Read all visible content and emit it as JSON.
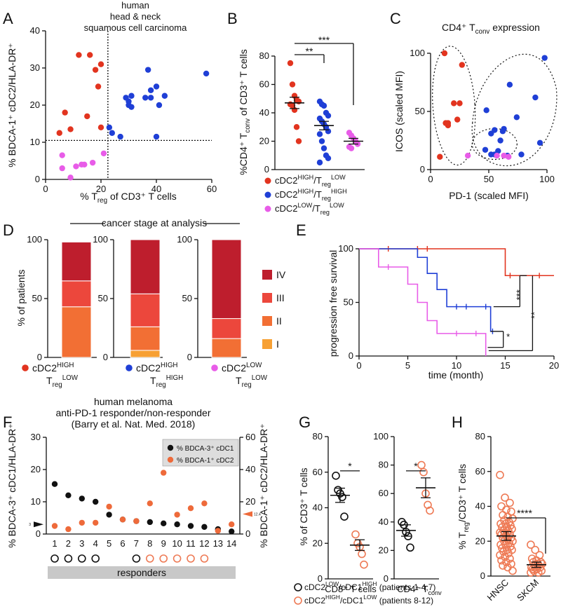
{
  "colors": {
    "red": "#e2341f",
    "blue": "#1f3fd6",
    "magenta": "#e85ce8",
    "orange": "#ee6a3a",
    "IV": "#be1e2d",
    "III": "#ec473c",
    "II": "#f26f34",
    "I": "#f7a033",
    "black": "#111111",
    "gray": "#c8c8c8",
    "circ_orange": "#ee7a55"
  },
  "panels": {
    "A": "A",
    "B": "B",
    "C": "C",
    "D": "D",
    "E": "E",
    "F": "F",
    "G": "G",
    "H": "H"
  },
  "chart_data": [
    {
      "panel": "A",
      "type": "scatter",
      "title": [
        "human",
        "head & neck",
        "squamous cell carcinoma"
      ],
      "xlabel_parts": [
        "% T",
        "reg",
        " of CD3⁺ T cells"
      ],
      "ylabel_parts": [
        "% BDCA-1⁺ cDC2/HLA-DR⁺"
      ],
      "xlim": [
        0,
        60
      ],
      "ylim": [
        0,
        40
      ],
      "xticks": [
        "0",
        "20",
        "40",
        "60"
      ],
      "yticks": [
        "0",
        "10",
        "20",
        "30",
        "40"
      ],
      "threshold_x": 22.5,
      "threshold_y": 10.5,
      "series": [
        {
          "color": "red",
          "points": [
            [
              5,
              12.5
            ],
            [
              7,
              18
            ],
            [
              9,
              13.5
            ],
            [
              12,
              33.5
            ],
            [
              15,
              17
            ],
            [
              16,
              33.5
            ],
            [
              18,
              29.5
            ],
            [
              19,
              25
            ],
            [
              20,
              31
            ],
            [
              20,
              14
            ]
          ]
        },
        {
          "color": "blue",
          "points": [
            [
              23,
              14
            ],
            [
              24,
              12.5
            ],
            [
              27,
              11.5
            ],
            [
              29,
              22
            ],
            [
              30,
              20
            ],
            [
              30,
              21
            ],
            [
              31,
              22.5
            ],
            [
              31,
              19.5
            ],
            [
              36,
              22
            ],
            [
              37,
              29.5
            ],
            [
              38,
              24
            ],
            [
              38,
              22
            ],
            [
              40,
              11.5
            ],
            [
              40,
              25
            ],
            [
              41,
              20
            ],
            [
              43,
              22.5
            ],
            [
              58,
              28.5
            ]
          ]
        },
        {
          "color": "magenta",
          "points": [
            [
              6,
              6.5
            ],
            [
              6,
              3
            ],
            [
              9,
              0.5
            ],
            [
              11,
              3.5
            ],
            [
              13,
              4
            ],
            [
              14,
              4
            ],
            [
              17,
              4.5
            ],
            [
              21,
              7
            ]
          ]
        }
      ]
    },
    {
      "panel": "B",
      "type": "scatter",
      "title": "",
      "ylabel_parts": [
        "%CD4⁺ T",
        "conv",
        " of  CD3⁺ T cells"
      ],
      "ylim": [
        0,
        80
      ],
      "yticks": [
        "0",
        "20",
        "40",
        "60",
        "80"
      ],
      "groups": [
        {
          "color": "red",
          "mean": 47,
          "sem": 4,
          "values": [
            75,
            60,
            52,
            49,
            48,
            46,
            45,
            42,
            30,
            20
          ]
        },
        {
          "color": "blue",
          "mean": 31,
          "sem": 3,
          "values": [
            48,
            46,
            45,
            40,
            38,
            36,
            34,
            32,
            30,
            27,
            25,
            20,
            15,
            10,
            8,
            5
          ]
        },
        {
          "color": "magenta",
          "mean": 20,
          "sem": 2,
          "values": [
            26,
            24,
            22,
            20,
            18,
            16,
            15
          ]
        }
      ],
      "sig": [
        "**",
        "***"
      ],
      "legend": [
        {
          "color": "red",
          "parts": [
            "cDC2",
            "HIGH",
            "/T",
            "reg",
            "LOW"
          ]
        },
        {
          "color": "blue",
          "parts": [
            "cDC2",
            "HIGH",
            "/T",
            "reg",
            "HIGH"
          ]
        },
        {
          "color": "magenta",
          "parts": [
            "cDC2",
            "LOW",
            "/T",
            "reg",
            "LOW"
          ]
        }
      ]
    },
    {
      "panel": "C",
      "type": "scatter",
      "title_parts": [
        "CD4⁺ T",
        "conv",
        " expression"
      ],
      "xlabel": "PD-1 (scaled MFI)",
      "ylabel": "ICOS (scaled MFI)",
      "xlim": [
        0,
        100
      ],
      "ylim": [
        0,
        100
      ],
      "xticks": [
        "0",
        "50",
        "100"
      ],
      "yticks": [
        "0",
        "50",
        "100"
      ],
      "series": [
        {
          "color": "red",
          "points": [
            [
              12,
              100
            ],
            [
              27,
              90
            ],
            [
              20,
              57
            ],
            [
              25,
              57
            ],
            [
              13,
              40
            ],
            [
              15,
              40
            ],
            [
              15,
              38
            ],
            [
              23,
              43
            ],
            [
              8,
              11
            ]
          ]
        },
        {
          "color": "blue",
          "points": [
            [
              98,
              96
            ],
            [
              68,
              73
            ],
            [
              90,
              62
            ],
            [
              48,
              51
            ],
            [
              74,
              45
            ],
            [
              63,
              35
            ],
            [
              52,
              31
            ],
            [
              55,
              34
            ],
            [
              58,
              16
            ],
            [
              47,
              17
            ],
            [
              52,
              13
            ],
            [
              55,
              13
            ],
            [
              78,
              13
            ],
            [
              66,
              12
            ],
            [
              94,
              23
            ],
            [
              62,
              33
            ],
            [
              60,
              25
            ]
          ]
        },
        {
          "color": "magenta",
          "points": [
            [
              32,
              12
            ],
            [
              57,
              12
            ],
            [
              63,
              12
            ],
            [
              67,
              11
            ]
          ]
        }
      ]
    },
    {
      "panel": "D",
      "type": "bar",
      "stacked": true,
      "title": "cancer stage at analysis",
      "ylabel": "% of patients",
      "ylim": [
        0,
        100
      ],
      "yticks": [
        "0",
        "50",
        "100"
      ],
      "legend": [
        "IV",
        "III",
        "II",
        "I"
      ],
      "bars": [
        {
          "IV": 33,
          "III": 22,
          "II": 43,
          "I": 0
        },
        {
          "IV": 46,
          "III": 28,
          "II": 20,
          "I": 6
        },
        {
          "IV": 67,
          "III": 17,
          "II": 16,
          "I": 0
        }
      ],
      "group_labels": [
        {
          "color": "red",
          "parts": [
            "cDC2",
            "HIGH",
            "T",
            "reg",
            "LOW"
          ]
        },
        {
          "color": "blue",
          "parts": [
            "cDC2",
            "HIGH",
            "T",
            "reg",
            "HIGH"
          ]
        },
        {
          "color": "magenta",
          "parts": [
            "cDC2",
            "LOW",
            "T",
            "reg",
            "LOW"
          ]
        }
      ]
    },
    {
      "panel": "E",
      "type": "line",
      "title": "",
      "xlabel": "time (month)",
      "ylabel": "progression free survival",
      "xlim": [
        0,
        20
      ],
      "ylim": [
        0,
        100
      ],
      "xticks": [
        "0",
        "5",
        "10",
        "15",
        "20"
      ],
      "yticks": [
        "0",
        "50",
        "100"
      ],
      "series": [
        {
          "color": "red",
          "steps": [
            [
              0,
              100
            ],
            [
              15,
              100
            ],
            [
              15,
              75
            ],
            [
              20,
              75
            ]
          ],
          "censor": [
            [
              3,
              100
            ],
            [
              6,
              100
            ],
            [
              7,
              100
            ],
            [
              15.5,
              75
            ],
            [
              18.5,
              75
            ]
          ]
        },
        {
          "color": "blue",
          "steps": [
            [
              0,
              100
            ],
            [
              6,
              100
            ],
            [
              6,
              92
            ],
            [
              7,
              92
            ],
            [
              7,
              77
            ],
            [
              8,
              77
            ],
            [
              8,
              62
            ],
            [
              9,
              62
            ],
            [
              9,
              46
            ],
            [
              13.5,
              46
            ],
            [
              13.5,
              23
            ],
            [
              13.6,
              23
            ]
          ],
          "censor": [
            [
              10,
              46
            ],
            [
              11,
              46
            ],
            [
              13,
              46
            ],
            [
              13.7,
              23
            ]
          ]
        },
        {
          "color": "magenta",
          "steps": [
            [
              0,
              100
            ],
            [
              2,
              100
            ],
            [
              2,
              83
            ],
            [
              5,
              83
            ],
            [
              5,
              67
            ],
            [
              6,
              67
            ],
            [
              6,
              50
            ],
            [
              7,
              50
            ],
            [
              7,
              33
            ],
            [
              8,
              33
            ],
            [
              8,
              21
            ],
            [
              13,
              21
            ],
            [
              13,
              0
            ]
          ],
          "censor": [
            [
              3,
              83
            ],
            [
              10,
              21
            ],
            [
              12,
              21
            ]
          ]
        }
      ],
      "sig": [
        "***",
        "*",
        "**"
      ]
    },
    {
      "panel": "F",
      "type": "scatter",
      "title": [
        "human melanoma",
        "anti-PD-1 responder/non-responder",
        "(Barry et al. Nat. Med. 2018)"
      ],
      "ylabel_left": "% BDCA-3⁺ cDC1/HLA-DR⁺",
      "ylabel_right": "% BDCA-1⁺ cDC2/HLA-DR⁺",
      "ylim_left": [
        0,
        30
      ],
      "ylim_right": [
        0,
        60
      ],
      "yticks_left": [
        "0",
        "10",
        "20",
        "30"
      ],
      "yticks_right": [
        "0",
        "20",
        "40",
        "60"
      ],
      "categories": [
        "1",
        "2",
        "3",
        "4",
        "5",
        "6",
        "7",
        "8",
        "9",
        "10",
        "11",
        "12",
        "13",
        "14"
      ],
      "series": [
        {
          "name": "% BDCA-3⁺ cDC1",
          "color": "black",
          "axis": "left",
          "values": [
            15.5,
            12,
            11,
            10,
            6,
            4.5,
            4,
            3.7,
            3.3,
            3,
            2.5,
            2.2,
            1.5,
            0.8
          ]
        },
        {
          "name": "% BDCA-1⁺ cDC2",
          "color": "orange",
          "axis": "right",
          "values": [
            5,
            3,
            7,
            7,
            17,
            9,
            8,
            19,
            38,
            12,
            16,
            19,
            2,
            6
          ]
        }
      ],
      "left_marker": "3",
      "right_marker": "12.4",
      "responders_label": "responders",
      "circles": [
        [
          "black",
          1
        ],
        [
          "black",
          2
        ],
        [
          "black",
          3
        ],
        [
          "black",
          4
        ],
        [
          "black",
          7
        ],
        [
          "orange",
          8
        ],
        [
          "orange",
          9
        ],
        [
          "orange",
          10
        ],
        [
          "orange",
          11
        ],
        [
          "orange",
          12
        ]
      ]
    },
    {
      "panel": "G",
      "type": "scatter",
      "ylabel": "% of CD3⁺ T cells",
      "sub": [
        {
          "ylim": [
            0,
            80
          ],
          "yticks": [
            "0",
            "20",
            "40",
            "60",
            "80"
          ],
          "label": "CD8⁺ T cells",
          "sig": "*",
          "groups": [
            {
              "color": "black",
              "mean": 47,
              "sem": 4,
              "values": [
                58,
                50,
                48,
                46,
                35
              ]
            },
            {
              "color": "orange",
              "mean": 19,
              "sem": 3,
              "values": [
                25,
                20,
                18,
                14,
                8
              ]
            }
          ]
        },
        {
          "ylim": [
            0,
            100
          ],
          "yticks": [
            "0",
            "20",
            "40",
            "60",
            "80",
            "100"
          ],
          "label_parts": [
            "CD4⁺ T",
            "conv"
          ],
          "sig": "*",
          "groups": [
            {
              "color": "black",
              "mean": 34,
              "sem": 4,
              "values": [
                40,
                38,
                33,
                30,
                22
              ]
            },
            {
              "color": "orange",
              "mean": 64,
              "sem": 7,
              "values": [
                80,
                75,
                60,
                52,
                48
              ]
            }
          ]
        }
      ],
      "legend": [
        {
          "color": "black",
          "parts": [
            "cDC2",
            "LOW",
            "/cDC1",
            "HIGH",
            " (patients 1-4,7)"
          ]
        },
        {
          "color": "orange",
          "parts": [
            "cDC2",
            "HIGH",
            "/cDC1",
            "LOW",
            " (patients 8-12)"
          ]
        }
      ]
    },
    {
      "panel": "H",
      "type": "scatter",
      "ylabel_parts": [
        "% T",
        "reg",
        "/CD3⁺ T cells"
      ],
      "ylim": [
        0,
        80
      ],
      "yticks": [
        "0",
        "20",
        "40",
        "60",
        "80"
      ],
      "categories": [
        "HNSC",
        "SKCM"
      ],
      "sig": "****",
      "groups": [
        {
          "mean": 23,
          "sem": 2.5,
          "values": [
            58,
            45,
            42,
            40,
            38,
            37,
            35,
            34,
            33,
            32,
            31,
            30,
            30,
            29,
            28,
            28,
            27,
            26,
            26,
            25,
            25,
            24,
            24,
            23,
            22,
            22,
            21,
            20,
            20,
            19,
            18,
            18,
            17,
            16,
            15,
            15,
            14,
            13,
            12,
            11,
            10,
            9,
            8,
            7,
            6,
            5,
            3
          ]
        },
        {
          "mean": 6.5,
          "sem": 1.5,
          "values": [
            18,
            15,
            12,
            10,
            9,
            8,
            8,
            7,
            7,
            6,
            6,
            5,
            5,
            5,
            4,
            4,
            3,
            3,
            2,
            2
          ]
        }
      ]
    }
  ]
}
